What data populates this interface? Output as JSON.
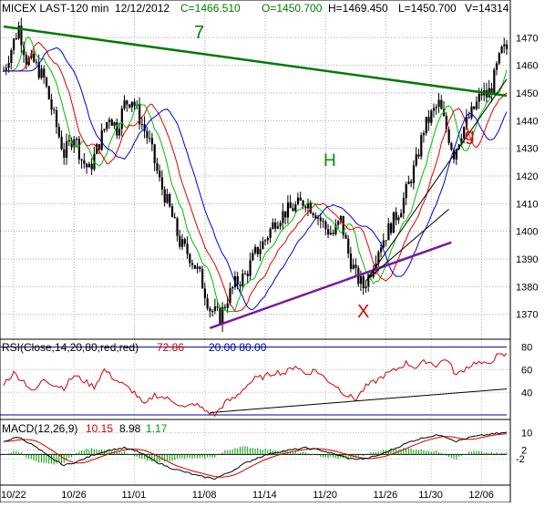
{
  "header": {
    "symbol": "MICEX LAST-120 min",
    "date": "12/12/2012",
    "close": "C=1466.510",
    "open": "O=1450.700",
    "high": "H=1469.450",
    "low": "L=1450.700",
    "volume": "V=14314"
  },
  "rsi_header": {
    "label": "RSI(Close,14,20,80,red,red)",
    "value": "72.86",
    "levels": "20.00  80.00"
  },
  "macd_header": {
    "label": "MACD(12,26,9)",
    "macd": "10.15",
    "signal": "8.98",
    "histogram": "1.17"
  },
  "colors": {
    "candles": "#000000",
    "ma_fast": "#00c000",
    "ma_mid": "#e00000",
    "ma_slow": "#0000d0",
    "trend_green": "#007a00",
    "trend_purple": "#7a1a9a",
    "annotation_red": "#e00000",
    "annotation_green": "#009000",
    "rsi_line": "#d00000",
    "macd_line": "#000000",
    "macd_signal": "#d00000",
    "macd_hist": "#00a000",
    "level_line": "#0000a0"
  },
  "chart_data": [
    {
      "type": "candlestick",
      "title": "MICEX LAST-120 min",
      "x_tick_labels": [
        "10/22",
        "10/26",
        "11/01",
        "11/08",
        "11/14",
        "11/20",
        "11/26",
        "11/30",
        "12/06"
      ],
      "y_ticks": [
        1370,
        1380,
        1390,
        1400,
        1410,
        1420,
        1430,
        1440,
        1450,
        1460,
        1470
      ],
      "ylim": [
        1361,
        1479
      ],
      "grid": true,
      "price_path": [
        [
          0,
          1458
        ],
        [
          3,
          1466
        ],
        [
          6,
          1474
        ],
        [
          9,
          1462
        ],
        [
          12,
          1461
        ],
        [
          16,
          1455
        ],
        [
          20,
          1441
        ],
        [
          24,
          1428
        ],
        [
          28,
          1435
        ],
        [
          31,
          1426
        ],
        [
          34,
          1422
        ],
        [
          38,
          1432
        ],
        [
          42,
          1442
        ],
        [
          45,
          1437
        ],
        [
          48,
          1446
        ],
        [
          51,
          1448
        ],
        [
          54,
          1441
        ],
        [
          58,
          1432
        ],
        [
          62,
          1418
        ],
        [
          66,
          1408
        ],
        [
          70,
          1396
        ],
        [
          74,
          1391
        ],
        [
          78,
          1384
        ],
        [
          82,
          1372
        ],
        [
          86,
          1369
        ],
        [
          89,
          1376
        ],
        [
          92,
          1381
        ],
        [
          96,
          1384
        ],
        [
          100,
          1392
        ],
        [
          104,
          1397
        ],
        [
          108,
          1404
        ],
        [
          112,
          1407
        ],
        [
          116,
          1409
        ],
        [
          120,
          1411
        ],
        [
          124,
          1407
        ],
        [
          128,
          1401
        ],
        [
          131,
          1399
        ],
        [
          134,
          1404
        ],
        [
          137,
          1392
        ],
        [
          140,
          1384
        ],
        [
          143,
          1380
        ],
        [
          146,
          1386
        ],
        [
          149,
          1394
        ],
        [
          152,
          1399
        ],
        [
          155,
          1404
        ],
        [
          158,
          1409
        ],
        [
          161,
          1417
        ],
        [
          164,
          1425
        ],
        [
          167,
          1437
        ],
        [
          170,
          1442
        ],
        [
          173,
          1446
        ],
        [
          176,
          1437
        ],
        [
          179,
          1428
        ],
        [
          182,
          1436
        ],
        [
          185,
          1441
        ],
        [
          188,
          1446
        ],
        [
          190,
          1450
        ],
        [
          192,
          1449
        ],
        [
          194,
          1452
        ],
        [
          196,
          1459
        ],
        [
          198,
          1465
        ],
        [
          200,
          1466
        ]
      ],
      "moving_averages": [
        {
          "color": "#00c000",
          "lag": 3,
          "smooth": 3
        },
        {
          "color": "#e00000",
          "lag": 6,
          "smooth": 5
        },
        {
          "color": "#0000d0",
          "lag": 10,
          "smooth": 8
        }
      ],
      "annotations": [
        {
          "label": "7",
          "color": "#007a00"
        },
        {
          "label": "H",
          "color": "#009000"
        },
        {
          "label": "X",
          "color": "#e00000"
        },
        {
          "label": "g",
          "color": "#e00000"
        }
      ],
      "trendlines": [
        {
          "label": "7",
          "from": [
            0,
            1474
          ],
          "to": [
            200,
            1449
          ],
          "color": "#007a00"
        },
        {
          "from": [
            82,
            1365
          ],
          "to": [
            178,
            1396
          ],
          "color": "#7a1a9a"
        },
        {
          "from": [
            145,
            1383
          ],
          "to": [
            177,
            1408
          ],
          "color": "#000000"
        },
        {
          "from": [
            144,
            1382
          ],
          "to": [
            200,
            1455
          ],
          "color": "#000000"
        }
      ]
    },
    {
      "type": "line",
      "title": "RSI(Close,14,20,80,red,red)",
      "y_ticks": [
        40,
        60,
        80
      ],
      "ylim": [
        16,
        87
      ],
      "levels": [
        20,
        80
      ],
      "series": [
        {
          "name": "RSI",
          "color": "#d00000"
        }
      ],
      "rsi_path": [
        [
          0,
          48
        ],
        [
          4,
          57
        ],
        [
          8,
          50
        ],
        [
          12,
          40
        ],
        [
          16,
          52
        ],
        [
          20,
          47
        ],
        [
          24,
          44
        ],
        [
          28,
          55
        ],
        [
          32,
          50
        ],
        [
          36,
          45
        ],
        [
          40,
          60
        ],
        [
          44,
          52
        ],
        [
          48,
          46
        ],
        [
          52,
          40
        ],
        [
          56,
          28
        ],
        [
          60,
          38
        ],
        [
          64,
          35
        ],
        [
          68,
          32
        ],
        [
          72,
          26
        ],
        [
          76,
          30
        ],
        [
          80,
          24
        ],
        [
          84,
          20
        ],
        [
          88,
          31
        ],
        [
          92,
          35
        ],
        [
          96,
          45
        ],
        [
          100,
          52
        ],
        [
          104,
          54
        ],
        [
          108,
          58
        ],
        [
          112,
          57
        ],
        [
          116,
          64
        ],
        [
          120,
          56
        ],
        [
          124,
          60
        ],
        [
          128,
          52
        ],
        [
          132,
          46
        ],
        [
          136,
          38
        ],
        [
          140,
          34
        ],
        [
          144,
          45
        ],
        [
          148,
          50
        ],
        [
          152,
          56
        ],
        [
          156,
          60
        ],
        [
          160,
          66
        ],
        [
          164,
          62
        ],
        [
          168,
          68
        ],
        [
          172,
          64
        ],
        [
          176,
          70
        ],
        [
          180,
          55
        ],
        [
          184,
          62
        ],
        [
          188,
          67
        ],
        [
          192,
          64
        ],
        [
          196,
          72
        ],
        [
          200,
          73
        ]
      ],
      "trendline": {
        "from": [
          82,
          22
        ],
        "to": [
          200,
          43
        ]
      }
    },
    {
      "type": "line",
      "title": "MACD(12,26,9)",
      "y_ticks": [
        10,
        2,
        -2
      ],
      "ylim": [
        -14,
        16
      ],
      "series": [
        {
          "name": "MACD",
          "color": "#000000"
        },
        {
          "name": "Signal",
          "color": "#d00000"
        }
      ],
      "macd_path": [
        [
          0,
          6
        ],
        [
          6,
          8
        ],
        [
          12,
          4
        ],
        [
          18,
          -1
        ],
        [
          24,
          -5
        ],
        [
          30,
          -3
        ],
        [
          36,
          0
        ],
        [
          42,
          2
        ],
        [
          48,
          3
        ],
        [
          54,
          1
        ],
        [
          60,
          -3
        ],
        [
          66,
          -6
        ],
        [
          72,
          -8
        ],
        [
          78,
          -10
        ],
        [
          84,
          -11
        ],
        [
          90,
          -8
        ],
        [
          96,
          -4
        ],
        [
          102,
          -1
        ],
        [
          108,
          1
        ],
        [
          114,
          2
        ],
        [
          120,
          3
        ],
        [
          126,
          2
        ],
        [
          132,
          0
        ],
        [
          138,
          -2
        ],
        [
          144,
          -2
        ],
        [
          150,
          0
        ],
        [
          156,
          3
        ],
        [
          162,
          6
        ],
        [
          168,
          8
        ],
        [
          174,
          9
        ],
        [
          180,
          6
        ],
        [
          186,
          8
        ],
        [
          192,
          9
        ],
        [
          200,
          10
        ]
      ]
    }
  ]
}
